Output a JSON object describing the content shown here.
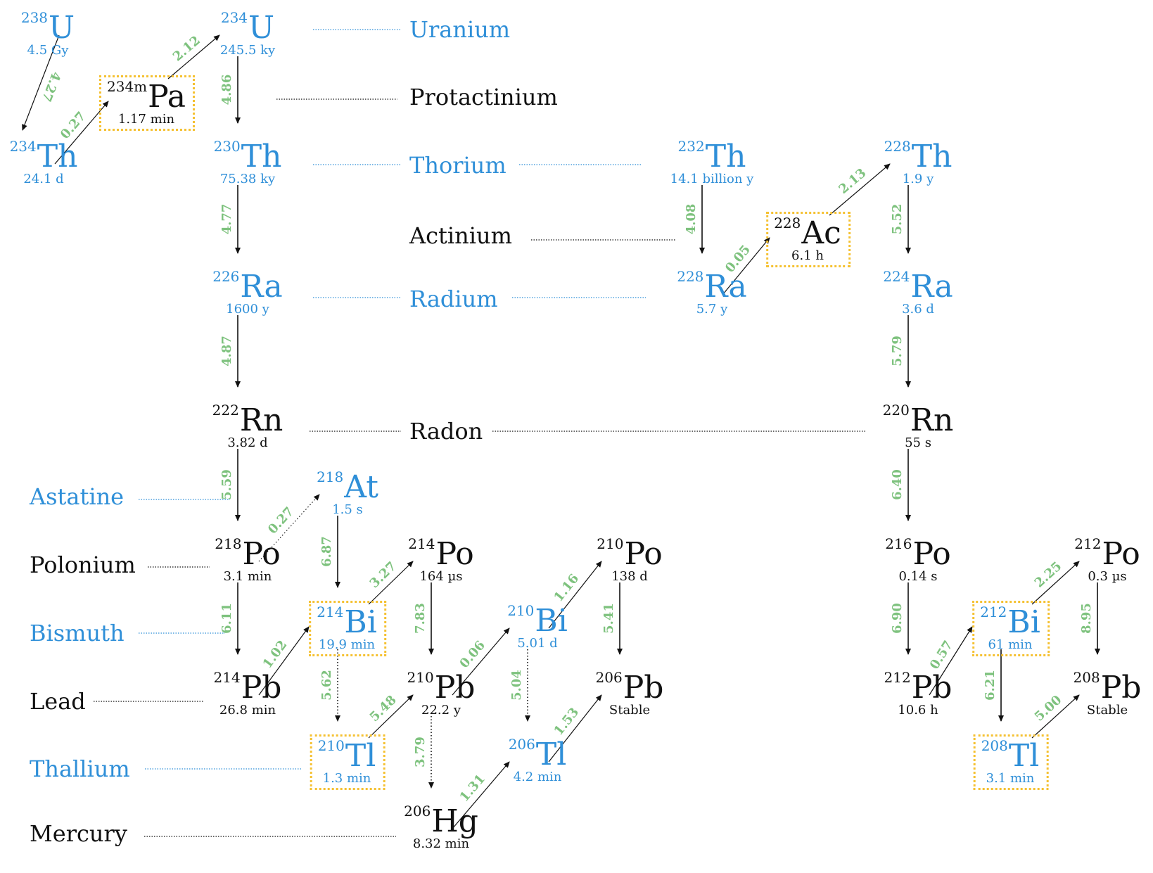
{
  "colors": {
    "blue": "#2f8fd8",
    "black": "#111111",
    "energy": "#7ec27e",
    "box": "#f5c132"
  },
  "elements": [
    {
      "id": "uranium",
      "name": "Uranium",
      "color": "blue"
    },
    {
      "id": "protactinium",
      "name": "Protactinium",
      "color": "black"
    },
    {
      "id": "thorium",
      "name": "Thorium",
      "color": "blue"
    },
    {
      "id": "actinium",
      "name": "Actinium",
      "color": "black"
    },
    {
      "id": "radium",
      "name": "Radium",
      "color": "blue"
    },
    {
      "id": "radon",
      "name": "Radon",
      "color": "black"
    },
    {
      "id": "astatine",
      "name": "Astatine",
      "color": "blue"
    },
    {
      "id": "polonium",
      "name": "Polonium",
      "color": "black"
    },
    {
      "id": "bismuth",
      "name": "Bismuth",
      "color": "blue"
    },
    {
      "id": "lead",
      "name": "Lead",
      "color": "black"
    },
    {
      "id": "thallium",
      "name": "Thallium",
      "color": "blue"
    },
    {
      "id": "mercury",
      "name": "Mercury",
      "color": "black"
    }
  ],
  "nuclides": [
    {
      "id": "u238",
      "mass": "238",
      "symbol": "U",
      "half_life": "4.5 Gy",
      "color": "blue",
      "boxed": false
    },
    {
      "id": "th234",
      "mass": "234",
      "symbol": "Th",
      "half_life": "24.1 d",
      "color": "blue",
      "boxed": false
    },
    {
      "id": "pa234m",
      "mass": "234m",
      "symbol": "Pa",
      "half_life": "1.17 min",
      "color": "black",
      "boxed": true
    },
    {
      "id": "u234",
      "mass": "234",
      "symbol": "U",
      "half_life": "245.5 ky",
      "color": "blue",
      "boxed": false
    },
    {
      "id": "th230",
      "mass": "230",
      "symbol": "Th",
      "half_life": "75.38 ky",
      "color": "blue",
      "boxed": false
    },
    {
      "id": "ra226",
      "mass": "226",
      "symbol": "Ra",
      "half_life": "1600 y",
      "color": "blue",
      "boxed": false
    },
    {
      "id": "rn222",
      "mass": "222",
      "symbol": "Rn",
      "half_life": "3.82 d",
      "color": "black",
      "boxed": false
    },
    {
      "id": "po218",
      "mass": "218",
      "symbol": "Po",
      "half_life": "3.1 min",
      "color": "black",
      "boxed": false
    },
    {
      "id": "at218",
      "mass": "218",
      "symbol": "At",
      "half_life": "1.5 s",
      "color": "blue",
      "boxed": false
    },
    {
      "id": "pb214",
      "mass": "214",
      "symbol": "Pb",
      "half_life": "26.8 min",
      "color": "black",
      "boxed": false
    },
    {
      "id": "bi214",
      "mass": "214",
      "symbol": "Bi",
      "half_life": "19.9 min",
      "color": "blue",
      "boxed": true
    },
    {
      "id": "po214",
      "mass": "214",
      "symbol": "Po",
      "half_life": "164 µs",
      "color": "black",
      "boxed": false
    },
    {
      "id": "tl210",
      "mass": "210",
      "symbol": "Tl",
      "half_life": "1.3 min",
      "color": "blue",
      "boxed": true
    },
    {
      "id": "pb210",
      "mass": "210",
      "symbol": "Pb",
      "half_life": "22.2 y",
      "color": "black",
      "boxed": false
    },
    {
      "id": "hg206",
      "mass": "206",
      "symbol": "Hg",
      "half_life": "8.32 min",
      "color": "black",
      "boxed": false
    },
    {
      "id": "bi210",
      "mass": "210",
      "symbol": "Bi",
      "half_life": "5.01 d",
      "color": "blue",
      "boxed": false
    },
    {
      "id": "tl206",
      "mass": "206",
      "symbol": "Tl",
      "half_life": "4.2 min",
      "color": "blue",
      "boxed": false
    },
    {
      "id": "po210",
      "mass": "210",
      "symbol": "Po",
      "half_life": "138 d",
      "color": "black",
      "boxed": false
    },
    {
      "id": "pb206",
      "mass": "206",
      "symbol": "Pb",
      "half_life": "Stable",
      "color": "black",
      "boxed": false
    },
    {
      "id": "th232",
      "mass": "232",
      "symbol": "Th",
      "half_life": "14.1 billion y",
      "color": "blue",
      "boxed": false
    },
    {
      "id": "ra228",
      "mass": "228",
      "symbol": "Ra",
      "half_life": "5.7 y",
      "color": "blue",
      "boxed": false
    },
    {
      "id": "ac228",
      "mass": "228",
      "symbol": "Ac",
      "half_life": "6.1 h",
      "color": "black",
      "boxed": true
    },
    {
      "id": "th228",
      "mass": "228",
      "symbol": "Th",
      "half_life": "1.9 y",
      "color": "blue",
      "boxed": false
    },
    {
      "id": "ra224",
      "mass": "224",
      "symbol": "Ra",
      "half_life": "3.6 d",
      "color": "blue",
      "boxed": false
    },
    {
      "id": "rn220",
      "mass": "220",
      "symbol": "Rn",
      "half_life": "55 s",
      "color": "black",
      "boxed": false
    },
    {
      "id": "po216",
      "mass": "216",
      "symbol": "Po",
      "half_life": "0.14 s",
      "color": "black",
      "boxed": false
    },
    {
      "id": "pb212",
      "mass": "212",
      "symbol": "Pb",
      "half_life": "10.6 h",
      "color": "black",
      "boxed": false
    },
    {
      "id": "bi212",
      "mass": "212",
      "symbol": "Bi",
      "half_life": "61 min",
      "color": "blue",
      "boxed": true
    },
    {
      "id": "po212",
      "mass": "212",
      "symbol": "Po",
      "half_life": "0.3 µs",
      "color": "black",
      "boxed": false
    },
    {
      "id": "tl208",
      "mass": "208",
      "symbol": "Tl",
      "half_life": "3.1 min",
      "color": "blue",
      "boxed": true
    },
    {
      "id": "pb208",
      "mass": "208",
      "symbol": "Pb",
      "half_life": "Stable",
      "color": "black",
      "boxed": false
    }
  ],
  "decays": [
    {
      "from": "u238",
      "to": "th234",
      "energy": "4.27",
      "dotted": false
    },
    {
      "from": "th234",
      "to": "pa234m",
      "energy": "0.27",
      "dotted": false
    },
    {
      "from": "pa234m",
      "to": "u234",
      "energy": "2.12",
      "dotted": false
    },
    {
      "from": "u234",
      "to": "th230",
      "energy": "4.86",
      "dotted": false
    },
    {
      "from": "th230",
      "to": "ra226",
      "energy": "4.77",
      "dotted": false
    },
    {
      "from": "ra226",
      "to": "rn222",
      "energy": "4.87",
      "dotted": false
    },
    {
      "from": "rn222",
      "to": "po218",
      "energy": "5.59",
      "dotted": false
    },
    {
      "from": "po218",
      "to": "at218",
      "energy": "0.27",
      "dotted": true
    },
    {
      "from": "po218",
      "to": "pb214",
      "energy": "6.11",
      "dotted": false
    },
    {
      "from": "at218",
      "to": "bi214",
      "energy": "6.87",
      "dotted": false
    },
    {
      "from": "pb214",
      "to": "bi214",
      "energy": "1.02",
      "dotted": false
    },
    {
      "from": "bi214",
      "to": "po214",
      "energy": "3.27",
      "dotted": false
    },
    {
      "from": "bi214",
      "to": "tl210",
      "energy": "5.62",
      "dotted": true
    },
    {
      "from": "po214",
      "to": "pb210",
      "energy": "7.83",
      "dotted": false
    },
    {
      "from": "tl210",
      "to": "pb210",
      "energy": "5.48",
      "dotted": false
    },
    {
      "from": "pb210",
      "to": "hg206",
      "energy": "3.79",
      "dotted": true
    },
    {
      "from": "pb210",
      "to": "bi210",
      "energy": "0.06",
      "dotted": false
    },
    {
      "from": "hg206",
      "to": "tl206",
      "energy": "1.31",
      "dotted": false
    },
    {
      "from": "bi210",
      "to": "po210",
      "energy": "1.16",
      "dotted": false
    },
    {
      "from": "bi210",
      "to": "tl206",
      "energy": "5.04",
      "dotted": true
    },
    {
      "from": "po210",
      "to": "pb206",
      "energy": "5.41",
      "dotted": false
    },
    {
      "from": "tl206",
      "to": "pb206",
      "energy": "1.53",
      "dotted": false
    },
    {
      "from": "th232",
      "to": "ra228",
      "energy": "4.08",
      "dotted": false
    },
    {
      "from": "ra228",
      "to": "ac228",
      "energy": "0.05",
      "dotted": false
    },
    {
      "from": "ac228",
      "to": "th228",
      "energy": "2.13",
      "dotted": false
    },
    {
      "from": "th228",
      "to": "ra224",
      "energy": "5.52",
      "dotted": false
    },
    {
      "from": "ra224",
      "to": "rn220",
      "energy": "5.79",
      "dotted": false
    },
    {
      "from": "rn220",
      "to": "po216",
      "energy": "6.40",
      "dotted": false
    },
    {
      "from": "po216",
      "to": "pb212",
      "energy": "6.90",
      "dotted": false
    },
    {
      "from": "pb212",
      "to": "bi212",
      "energy": "0.57",
      "dotted": false
    },
    {
      "from": "bi212",
      "to": "po212",
      "energy": "2.25",
      "dotted": false
    },
    {
      "from": "bi212",
      "to": "tl208",
      "energy": "6.21",
      "dotted": false
    },
    {
      "from": "po212",
      "to": "pb208",
      "energy": "8.95",
      "dotted": false
    },
    {
      "from": "tl208",
      "to": "pb208",
      "energy": "5.00",
      "dotted": false
    }
  ]
}
